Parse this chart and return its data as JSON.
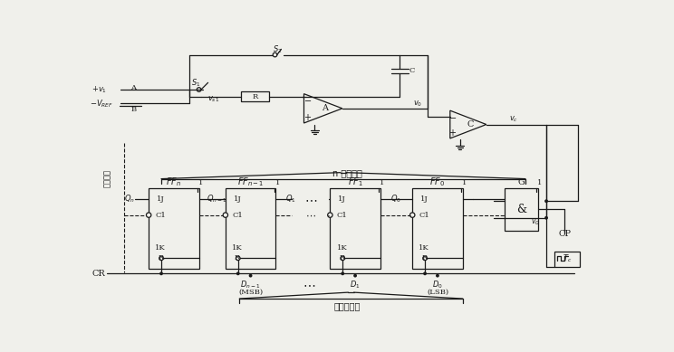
{
  "bg_color": "#f0f0eb",
  "line_color": "#1a1a1a",
  "fig_width": 7.44,
  "fig_height": 3.89,
  "dpi": 100,
  "timing_label": "定时信号",
  "n_counter_label": "n 级计数器",
  "digital_out_label": "数字量输出"
}
